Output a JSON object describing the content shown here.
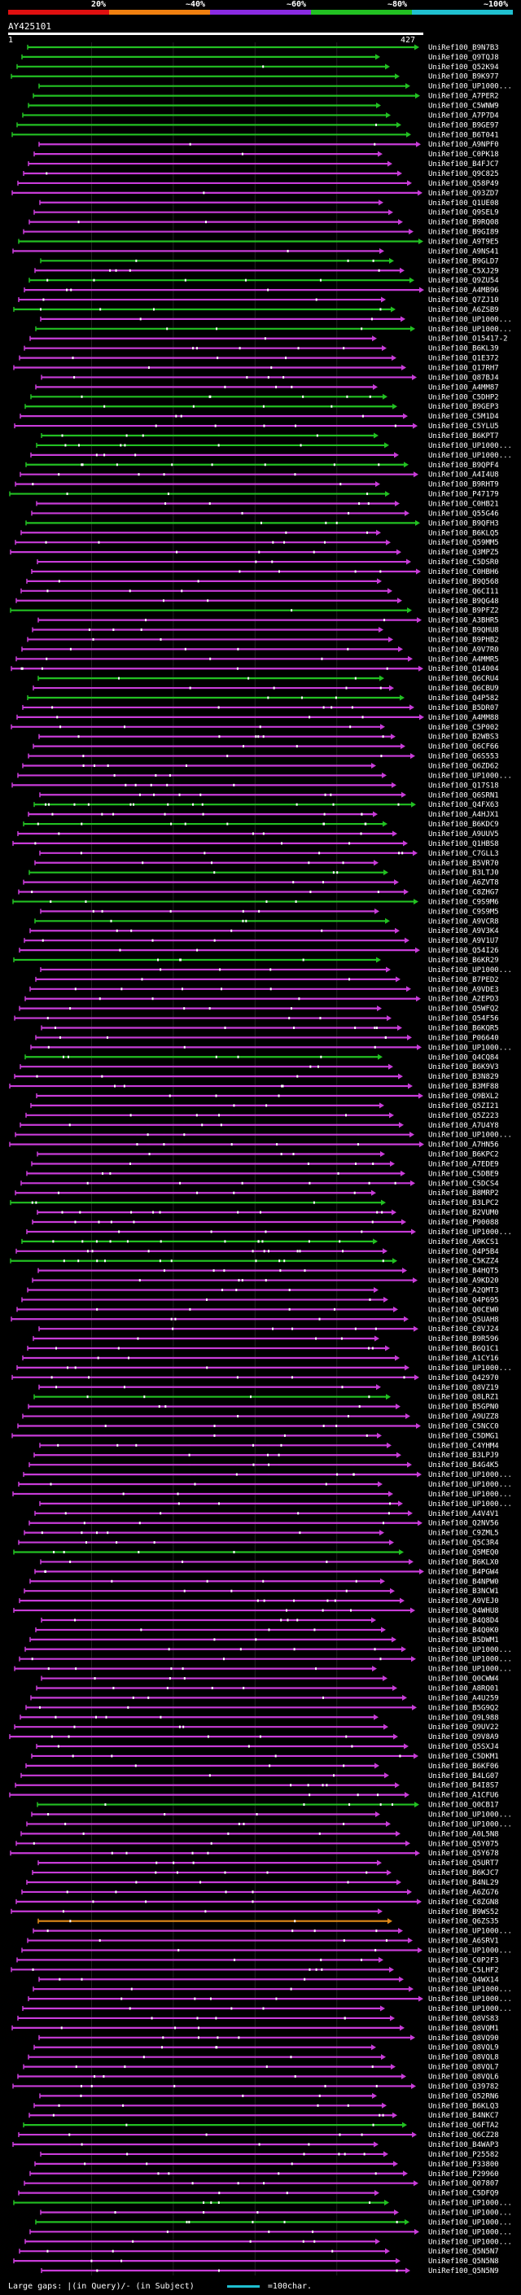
{
  "header": {
    "scale_labels": [
      "20%",
      "~40%",
      "~60%",
      "~80%",
      "~100%"
    ],
    "scale_colors": [
      "#e01010",
      "#f08010",
      "#8a2be2",
      "#22c022",
      "#20c0d0"
    ]
  },
  "query": {
    "title": "AY425101",
    "start": "1",
    "end": "427"
  },
  "hits": [
    {
      "name": "UniRef100_B9N7B3",
      "kind": "g",
      "gaps": 0
    },
    {
      "name": "UniRef100_Q9TQJ8",
      "kind": "g",
      "gaps": 0
    },
    {
      "name": "UniRef100_Q52K94",
      "kind": "g",
      "gaps": 1
    },
    {
      "name": "UniRef100_B9K977",
      "kind": "g",
      "gaps": 0
    },
    {
      "name": "UniRef100_UP1000...",
      "kind": "g",
      "gaps": 0
    },
    {
      "name": "UniRef100_A7PER2",
      "kind": "g",
      "gaps": 0
    },
    {
      "name": "UniRef100_C5WNW9",
      "kind": "g",
      "gaps": 0
    },
    {
      "name": "UniRef100_A7P7D4",
      "kind": "g",
      "gaps": 0
    },
    {
      "name": "UniRef100_B9GE97",
      "kind": "g",
      "gaps": 1
    },
    {
      "name": "UniRef100_B6T041",
      "kind": "g",
      "gaps": 0
    },
    {
      "name": "UniRef100_A9NPF0",
      "kind": "m",
      "gaps": 2
    },
    {
      "name": "UniRef100_C0PK18",
      "kind": "m",
      "gaps": 1
    },
    {
      "name": "UniRef100_B4FJC7",
      "kind": "m",
      "gaps": 0
    },
    {
      "name": "UniRef100_Q9C825",
      "kind": "m",
      "gaps": 1
    },
    {
      "name": "UniRef100_Q58P49",
      "kind": "m",
      "gaps": 0
    },
    {
      "name": "UniRef100_Q93ZD7",
      "kind": "m",
      "gaps": 1
    },
    {
      "name": "UniRef100_Q1UE08",
      "kind": "m",
      "gaps": 0
    },
    {
      "name": "UniRef100_Q9SEL9",
      "kind": "m",
      "gaps": 0
    },
    {
      "name": "UniRef100_B9RQ08",
      "kind": "m",
      "gaps": 2
    },
    {
      "name": "UniRef100_B9GI89",
      "kind": "m",
      "gaps": 0
    },
    {
      "name": "UniRef100_A9T9E5",
      "kind": "g",
      "gaps": 0
    },
    {
      "name": "UniRef100_A9NS41",
      "kind": "m",
      "gaps": 1
    },
    {
      "name": "UniRef100_B9GLD7",
      "kind": "g",
      "gaps": 3
    },
    {
      "name": "UniRef100_C5XJ29",
      "kind": "m",
      "gaps": 4
    },
    {
      "name": "UniRef100_Q9ZU54",
      "kind": "g",
      "gaps": 5
    },
    {
      "name": "UniRef100_A4MB96",
      "kind": "m",
      "gaps": 3
    },
    {
      "name": "UniRef100_Q7ZJ10",
      "kind": "m",
      "gaps": 2
    },
    {
      "name": "UniRef100_A6ZSB9",
      "kind": "g",
      "gaps": 4
    },
    {
      "name": "UniRef100_UP1000...",
      "kind": "m",
      "gaps": 2
    },
    {
      "name": "UniRef100_UP1000...",
      "kind": "g",
      "gaps": 3
    },
    {
      "name": "UniRef100_O15417-2",
      "kind": "m",
      "gaps": 1
    },
    {
      "name": "UniRef100_B6KL39",
      "kind": "m",
      "gaps": 5
    },
    {
      "name": "UniRef100_Q1E372",
      "kind": "m",
      "gaps": 3
    },
    {
      "name": "UniRef100_Q17RH7",
      "kind": "m",
      "gaps": 2
    },
    {
      "name": "UniRef100_Q87BJ4",
      "kind": "m",
      "gaps": 4
    },
    {
      "name": "UniRef100_A4MM87",
      "kind": "m",
      "gaps": 3
    },
    {
      "name": "UniRef100_C5DHP2",
      "kind": "g",
      "gaps": 6
    },
    {
      "name": "UniRef100_B9GEP3",
      "kind": "g",
      "gaps": 4
    },
    {
      "name": "UniRef100_C5M1D4",
      "kind": "m",
      "gaps": 3
    },
    {
      "name": "UniRef100_C5YLU5",
      "kind": "m",
      "gaps": 5
    },
    {
      "name": "UniRef100_B6KPT7",
      "kind": "g",
      "gaps": 4
    },
    {
      "name": "UniRef100_UP1000...",
      "kind": "g",
      "gaps": 6
    },
    {
      "name": "UniRef100_UP1000...",
      "kind": "m",
      "gaps": 3
    },
    {
      "name": "UniRef100_B9QPF4",
      "kind": "g",
      "gaps": 8
    },
    {
      "name": "UniRef100_A4I4U8",
      "kind": "m",
      "gaps": 4
    },
    {
      "name": "UniRef100_B9RHT9",
      "kind": "m",
      "gaps": 2
    },
    {
      "name": "UniRef100_P47179",
      "kind": "g",
      "gaps": 3
    },
    {
      "name": "UniRef100_C0HB21",
      "kind": "m",
      "gaps": 4
    },
    {
      "name": "UniRef100_Q55G46",
      "kind": "m",
      "gaps": 2
    },
    {
      "name": "UniRef100_B9QFH3",
      "kind": "g",
      "gaps": 3
    },
    {
      "name": "UniRef100_B6KLQ5",
      "kind": "m",
      "gaps": 2
    },
    {
      "name": "UniRef100_Q59MM5",
      "kind": "m",
      "gaps": 5
    },
    {
      "name": "UniRef100_Q3MPZ5",
      "kind": "m",
      "gaps": 3
    },
    {
      "name": "UniRef100_C5DSR0",
      "kind": "m",
      "gaps": 2
    },
    {
      "name": "UniRef100_C0HBH6",
      "kind": "m",
      "gaps": 4
    },
    {
      "name": "UniRef100_B9Q568",
      "kind": "m",
      "gaps": 2
    },
    {
      "name": "UniRef100_Q6CI11",
      "kind": "m",
      "gaps": 3
    },
    {
      "name": "UniRef100_B9QG48",
      "kind": "m",
      "gaps": 2
    },
    {
      "name": "UniRef100_B9PFZ2",
      "kind": "g",
      "gaps": 1
    },
    {
      "name": "UniRef100_A3BHR5",
      "kind": "m",
      "gaps": 2
    },
    {
      "name": "UniRef100_B9QHU8",
      "kind": "m",
      "gaps": 3
    },
    {
      "name": "UniRef100_B9PHB2",
      "kind": "m",
      "gaps": 2
    },
    {
      "name": "UniRef100_A9V7R0",
      "kind": "m",
      "gaps": 4
    },
    {
      "name": "UniRef100_A4MMR5",
      "kind": "m",
      "gaps": 3
    },
    {
      "name": "UniRef100_Q14004",
      "kind": "m",
      "gaps": 5
    },
    {
      "name": "UniRef100_Q6CRU4",
      "kind": "g",
      "gaps": 3
    },
    {
      "name": "UniRef100_Q6CBU9",
      "kind": "m",
      "gaps": 4
    },
    {
      "name": "UniRef100_Q4P582",
      "kind": "g",
      "gaps": 3
    },
    {
      "name": "UniRef100_B5DR07",
      "kind": "m",
      "gaps": 5
    },
    {
      "name": "UniRef100_A4MM88",
      "kind": "m",
      "gaps": 3
    },
    {
      "name": "UniRef100_C5P002",
      "kind": "m",
      "gaps": 4
    },
    {
      "name": "UniRef100_B2WBS3",
      "kind": "m",
      "gaps": 6
    },
    {
      "name": "UniRef100_Q6CF66",
      "kind": "m",
      "gaps": 2
    },
    {
      "name": "UniRef100_Q6S553",
      "kind": "m",
      "gaps": 3
    },
    {
      "name": "UniRef100_Q6ZD62",
      "kind": "m",
      "gaps": 4
    },
    {
      "name": "UniRef100_UP1000...",
      "kind": "m",
      "gaps": 3
    },
    {
      "name": "UniRef100_Q17S18",
      "kind": "m",
      "gaps": 5
    },
    {
      "name": "UniRef100_Q6SRN1",
      "kind": "m",
      "gaps": 6
    },
    {
      "name": "UniRef100_Q4FX63",
      "kind": "g",
      "gaps": 12
    },
    {
      "name": "UniRef100_A4HJX1",
      "kind": "m",
      "gaps": 8
    },
    {
      "name": "UniRef100_B6KDC9",
      "kind": "g",
      "gaps": 9
    },
    {
      "name": "UniRef100_A9UUV5",
      "kind": "m",
      "gaps": 4
    },
    {
      "name": "UniRef100_Q1HBS8",
      "kind": "m",
      "gaps": 3
    },
    {
      "name": "UniRef100_C7GLL3",
      "kind": "m",
      "gaps": 5
    },
    {
      "name": "UniRef100_B5VR70",
      "kind": "m",
      "gaps": 4
    },
    {
      "name": "UniRef100_B3LTJ0",
      "kind": "g",
      "gaps": 3
    },
    {
      "name": "UniRef100_A6ZVT8",
      "kind": "m",
      "gaps": 2
    },
    {
      "name": "UniRef100_C8ZHG7",
      "kind": "m",
      "gaps": 3
    },
    {
      "name": "UniRef100_C9S9M6",
      "kind": "g",
      "gaps": 4
    },
    {
      "name": "UniRef100_C9S9M5",
      "kind": "m",
      "gaps": 5
    },
    {
      "name": "UniRef100_A9VCR8",
      "kind": "g",
      "gaps": 3
    },
    {
      "name": "UniRef100_A9V3K4",
      "kind": "m",
      "gaps": 4
    },
    {
      "name": "UniRef100_A9V1U7",
      "kind": "m",
      "gaps": 3
    },
    {
      "name": "UniRef100_Q54I26",
      "kind": "m",
      "gaps": 2
    },
    {
      "name": "UniRef100_B6KR29",
      "kind": "g",
      "gaps": 4
    },
    {
      "name": "UniRef100_UP1000...",
      "kind": "m",
      "gaps": 3
    },
    {
      "name": "UniRef100_B7PED2",
      "kind": "m",
      "gaps": 2
    },
    {
      "name": "UniRef100_A9VDE3",
      "kind": "m",
      "gaps": 5
    },
    {
      "name": "UniRef100_A2EPD3",
      "kind": "m",
      "gaps": 3
    },
    {
      "name": "UniRef100_Q5WFQ2",
      "kind": "m",
      "gaps": 4
    },
    {
      "name": "UniRef100_Q54F56",
      "kind": "m",
      "gaps": 3
    },
    {
      "name": "UniRef100_B6KQR5",
      "kind": "m",
      "gaps": 6
    },
    {
      "name": "UniRef100_P06640",
      "kind": "m",
      "gaps": 4
    },
    {
      "name": "UniRef100_UP1000...",
      "kind": "m",
      "gaps": 3
    },
    {
      "name": "UniRef100_Q4CQ84",
      "kind": "g",
      "gaps": 5
    },
    {
      "name": "UniRef100_B6K9V3",
      "kind": "m",
      "gaps": 2
    },
    {
      "name": "UniRef100_B3N829",
      "kind": "m",
      "gaps": 3
    },
    {
      "name": "UniRef100_B3MF88",
      "kind": "m",
      "gaps": 4
    },
    {
      "name": "UniRef100_Q9BXL2",
      "kind": "m",
      "gaps": 3
    },
    {
      "name": "UniRef100_Q5ZI21",
      "kind": "m",
      "gaps": 2
    },
    {
      "name": "UniRef100_Q5Z223",
      "kind": "m",
      "gaps": 4
    },
    {
      "name": "UniRef100_A7U4Y8",
      "kind": "m",
      "gaps": 3
    },
    {
      "name": "UniRef100_UP1000...",
      "kind": "m",
      "gaps": 2
    },
    {
      "name": "UniRef100_A7HN56",
      "kind": "m",
      "gaps": 5
    },
    {
      "name": "UniRef100_B6KPC2",
      "kind": "m",
      "gaps": 3
    },
    {
      "name": "UniRef100_A7EDE9",
      "kind": "m",
      "gaps": 4
    },
    {
      "name": "UniRef100_C5DBE9",
      "kind": "m",
      "gaps": 3
    },
    {
      "name": "UniRef100_C5DCS4",
      "kind": "m",
      "gaps": 6
    },
    {
      "name": "UniRef100_B8MRP2",
      "kind": "m",
      "gaps": 4
    },
    {
      "name": "UniRef100_B3LPC2",
      "kind": "g",
      "gaps": 3
    },
    {
      "name": "UniRef100_B2VUM0",
      "kind": "m",
      "gaps": 9
    },
    {
      "name": "UniRef100_P90088",
      "kind": "m",
      "gaps": 5
    },
    {
      "name": "UniRef100_UP1000...",
      "kind": "m",
      "gaps": 4
    },
    {
      "name": "UniRef100_A9KCS1",
      "kind": "g",
      "gaps": 12
    },
    {
      "name": "UniRef100_Q4P5B4",
      "kind": "m",
      "gaps": 9
    },
    {
      "name": "UniRef100_C5KZZ4",
      "kind": "g",
      "gaps": 10
    },
    {
      "name": "UniRef100_B4HQT5",
      "kind": "m",
      "gaps": 5
    },
    {
      "name": "UniRef100_A9KD20",
      "kind": "m",
      "gaps": 4
    },
    {
      "name": "UniRef100_A2QMT3",
      "kind": "m",
      "gaps": 3
    },
    {
      "name": "UniRef100_Q4P695",
      "kind": "m",
      "gaps": 2
    },
    {
      "name": "UniRef100_Q0CEW0",
      "kind": "m",
      "gaps": 4
    },
    {
      "name": "UniRef100_Q5UAH8",
      "kind": "m",
      "gaps": 3
    },
    {
      "name": "UniRef100_C8VJ24",
      "kind": "m",
      "gaps": 5
    },
    {
      "name": "UniRef100_B9R596",
      "kind": "m",
      "gaps": 3
    },
    {
      "name": "UniRef100_B6Q1C1",
      "kind": "m",
      "gaps": 4
    },
    {
      "name": "UniRef100_A1CY16",
      "kind": "m",
      "gaps": 2
    },
    {
      "name": "UniRef100_UP1000...",
      "kind": "m",
      "gaps": 3
    },
    {
      "name": "UniRef100_Q42970",
      "kind": "m",
      "gaps": 5
    },
    {
      "name": "UniRef100_Q8VZ19",
      "kind": "m",
      "gaps": 3
    },
    {
      "name": "UniRef100_Q8LRZ1",
      "kind": "g",
      "gaps": 4
    },
    {
      "name": "UniRef100_B5GPN0",
      "kind": "m",
      "gaps": 3
    },
    {
      "name": "UniRef100_A9UZZ8",
      "kind": "m",
      "gaps": 2
    },
    {
      "name": "UniRef100_C5NCC0",
      "kind": "m",
      "gaps": 4
    },
    {
      "name": "UniRef100_C5DMG1",
      "kind": "m",
      "gaps": 3
    },
    {
      "name": "UniRef100_C4YHM4",
      "kind": "m",
      "gaps": 5
    },
    {
      "name": "UniRef100_B3LPJ9",
      "kind": "m",
      "gaps": 3
    },
    {
      "name": "UniRef100_B4G4K5",
      "kind": "m",
      "gaps": 2
    },
    {
      "name": "UniRef100_UP1000...",
      "kind": "m",
      "gaps": 4
    },
    {
      "name": "UniRef100_UP1000...",
      "kind": "m",
      "gaps": 3
    },
    {
      "name": "UniRef100_UP1000...",
      "kind": "m",
      "gaps": 2
    },
    {
      "name": "UniRef100_UP1000...",
      "kind": "m",
      "gaps": 3
    },
    {
      "name": "UniRef100_A4V4V1",
      "kind": "m",
      "gaps": 4
    },
    {
      "name": "UniRef100_Q2NV56",
      "kind": "m",
      "gaps": 3
    },
    {
      "name": "UniRef100_C9ZML5",
      "kind": "m",
      "gaps": 5
    },
    {
      "name": "UniRef100_Q5C3R4",
      "kind": "m",
      "gaps": 3
    },
    {
      "name": "UniRef100_Q5MEQ0",
      "kind": "g",
      "gaps": 4
    },
    {
      "name": "UniRef100_B6KLX0",
      "kind": "m",
      "gaps": 3
    },
    {
      "name": "UniRef100_B4PGW4",
      "kind": "m",
      "gaps": 2
    },
    {
      "name": "UniRef100_B4NPW0",
      "kind": "m",
      "gaps": 4
    },
    {
      "name": "UniRef100_B3NCW1",
      "kind": "m",
      "gaps": 3
    },
    {
      "name": "UniRef100_A9VEJ0",
      "kind": "m",
      "gaps": 5
    },
    {
      "name": "UniRef100_Q4WHU8",
      "kind": "m",
      "gaps": 3
    },
    {
      "name": "UniRef100_B4Q8D4",
      "kind": "m",
      "gaps": 4
    },
    {
      "name": "UniRef100_B4Q0K0",
      "kind": "m",
      "gaps": 3
    },
    {
      "name": "UniRef100_B5DWM1",
      "kind": "m",
      "gaps": 2
    },
    {
      "name": "UniRef100_UP1000...",
      "kind": "m",
      "gaps": 4
    },
    {
      "name": "UniRef100_UP1000...",
      "kind": "m",
      "gaps": 3
    },
    {
      "name": "UniRef100_UP1000...",
      "kind": "m",
      "gaps": 5
    },
    {
      "name": "UniRef100_Q0CWW4",
      "kind": "m",
      "gaps": 3
    },
    {
      "name": "UniRef100_A8RQ01",
      "kind": "m",
      "gaps": 4
    },
    {
      "name": "UniRef100_A4U259",
      "kind": "m",
      "gaps": 3
    },
    {
      "name": "UniRef100_B5G9Q2",
      "kind": "m",
      "gaps": 2
    },
    {
      "name": "UniRef100_Q9L988",
      "kind": "m",
      "gaps": 4
    },
    {
      "name": "UniRef100_Q9UV22",
      "kind": "m",
      "gaps": 3
    },
    {
      "name": "UniRef100_Q9V8A9",
      "kind": "m",
      "gaps": 5
    },
    {
      "name": "UniRef100_Q5SXJ4",
      "kind": "m",
      "gaps": 3
    },
    {
      "name": "UniRef100_C5DKM1",
      "kind": "m",
      "gaps": 4
    },
    {
      "name": "UniRef100_B6KF06",
      "kind": "m",
      "gaps": 3
    },
    {
      "name": "UniRef100_B4LG07",
      "kind": "m",
      "gaps": 2
    },
    {
      "name": "UniRef100_B4I8S7",
      "kind": "m",
      "gaps": 4
    },
    {
      "name": "UniRef100_A1CFU6",
      "kind": "m",
      "gaps": 3
    },
    {
      "name": "UniRef100_Q0CB17",
      "kind": "g",
      "gaps": 5
    },
    {
      "name": "UniRef100_UP1000...",
      "kind": "m",
      "gaps": 3
    },
    {
      "name": "UniRef100_UP1000...",
      "kind": "m",
      "gaps": 4
    },
    {
      "name": "UniRef100_A0L5N8",
      "kind": "m",
      "gaps": 3
    },
    {
      "name": "UniRef100_Q5Y075",
      "kind": "m",
      "gaps": 2
    },
    {
      "name": "UniRef100_Q5Y678",
      "kind": "m",
      "gaps": 4
    },
    {
      "name": "UniRef100_Q5URT7",
      "kind": "m",
      "gaps": 3
    },
    {
      "name": "UniRef100_B6KJC7",
      "kind": "m",
      "gaps": 5
    },
    {
      "name": "UniRef100_B4NL29",
      "kind": "m",
      "gaps": 3
    },
    {
      "name": "UniRef100_A6ZG76",
      "kind": "m",
      "gaps": 4
    },
    {
      "name": "UniRef100_C8ZGN8",
      "kind": "m",
      "gaps": 3
    },
    {
      "name": "UniRef100_B9WS52",
      "kind": "m",
      "gaps": 2
    },
    {
      "name": "UniRef100_Q6ZS35",
      "kind": "o",
      "gaps": 2
    },
    {
      "name": "UniRef100_UP1000...",
      "kind": "m",
      "gaps": 4
    },
    {
      "name": "UniRef100_A6SRV1",
      "kind": "m",
      "gaps": 3
    },
    {
      "name": "UniRef100_UP1000...",
      "kind": "m",
      "gaps": 2
    },
    {
      "name": "UniRef100_C0P2F3",
      "kind": "m",
      "gaps": 3
    },
    {
      "name": "UniRef100_C5LHF2",
      "kind": "m",
      "gaps": 4
    },
    {
      "name": "UniRef100_Q4WX14",
      "kind": "m",
      "gaps": 3
    },
    {
      "name": "UniRef100_UP1000...",
      "kind": "m",
      "gaps": 2
    },
    {
      "name": "UniRef100_UP1000...",
      "kind": "m",
      "gaps": 4
    },
    {
      "name": "UniRef100_UP1000...",
      "kind": "m",
      "gaps": 3
    },
    {
      "name": "UniRef100_Q8VS83",
      "kind": "m",
      "gaps": 5
    },
    {
      "name": "UniRef100_Q8VQM1",
      "kind": "m",
      "gaps": 3
    },
    {
      "name": "UniRef100_Q8VQ90",
      "kind": "m",
      "gaps": 4
    },
    {
      "name": "UniRef100_Q8VQL9",
      "kind": "m",
      "gaps": 3
    },
    {
      "name": "UniRef100_Q8VQL8",
      "kind": "m",
      "gaps": 2
    },
    {
      "name": "UniRef100_Q8VQL7",
      "kind": "m",
      "gaps": 4
    },
    {
      "name": "UniRef100_Q8VQL6",
      "kind": "m",
      "gaps": 3
    },
    {
      "name": "UniRef100_Q39782",
      "kind": "m",
      "gaps": 5
    },
    {
      "name": "UniRef100_Q52RN6",
      "kind": "m",
      "gaps": 3
    },
    {
      "name": "UniRef100_B6KLQ3",
      "kind": "m",
      "gaps": 4
    },
    {
      "name": "UniRef100_B4NKC7",
      "kind": "m",
      "gaps": 3
    },
    {
      "name": "UniRef100_Q6FTA2",
      "kind": "g",
      "gaps": 2
    },
    {
      "name": "UniRef100_Q6CZ28",
      "kind": "m",
      "gaps": 4
    },
    {
      "name": "UniRef100_B4WAP3",
      "kind": "m",
      "gaps": 3
    },
    {
      "name": "UniRef100_P25582",
      "kind": "m",
      "gaps": 5
    },
    {
      "name": "UniRef100_P33800",
      "kind": "m",
      "gaps": 3
    },
    {
      "name": "UniRef100_P29960",
      "kind": "m",
      "gaps": 4
    },
    {
      "name": "UniRef100_Q07807",
      "kind": "m",
      "gaps": 3
    },
    {
      "name": "UniRef100_C5DFQ9",
      "kind": "m",
      "gaps": 2
    },
    {
      "name": "UniRef100_UP1000...",
      "kind": "g",
      "gaps": 4
    },
    {
      "name": "UniRef100_UP1000...",
      "kind": "m",
      "gaps": 3
    },
    {
      "name": "UniRef100_UP1000...",
      "kind": "g",
      "gaps": 5
    },
    {
      "name": "UniRef100_UP1000...",
      "kind": "m",
      "gaps": 3
    },
    {
      "name": "UniRef100_UP1000...",
      "kind": "m",
      "gaps": 4
    },
    {
      "name": "UniRef100_Q5N5N7",
      "kind": "m",
      "gaps": 3
    },
    {
      "name": "UniRef100_Q5N5N8",
      "kind": "m",
      "gaps": 2
    },
    {
      "name": "UniRef100_Q5N5N9",
      "kind": "m",
      "gaps": 3
    }
  ],
  "footer": {
    "gaps_label": "Large gaps: ",
    "gaps_desc": "|(in Query)/- (in Subject)",
    "legend_text": "=100char."
  },
  "colors": {
    "g": "#22c022",
    "m": "#c83cd8",
    "o": "#e08a18",
    "dot": "#ffffff",
    "background": "#000000"
  }
}
